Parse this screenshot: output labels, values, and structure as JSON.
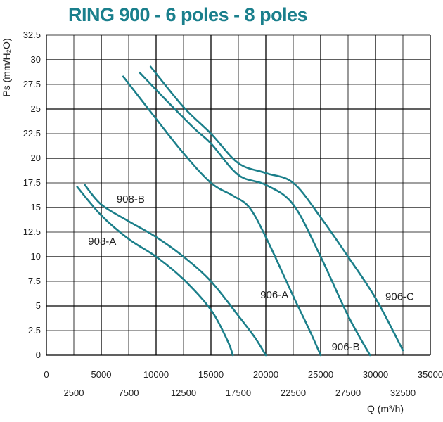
{
  "chart_data": {
    "type": "line",
    "title": "RING 900 - 6 poles -  8 poles",
    "xlabel": "Q (m³/h)",
    "ylabel": "Ps (mm/H₂O)",
    "xlim": [
      0,
      35000
    ],
    "ylim": [
      0,
      32.5
    ],
    "grid": true,
    "x_ticks_top": [
      "0",
      "5000",
      "10000",
      "15000",
      "20000",
      "25000",
      "30000",
      "35000"
    ],
    "x_ticks_bottom": [
      "2500",
      "7500",
      "12500",
      "17500",
      "22500",
      "27500",
      "32500"
    ],
    "y_ticks": [
      "0",
      "2.5",
      "5",
      "7.5",
      "10",
      "12.5",
      "15",
      "17.5",
      "20",
      "22.5",
      "25",
      "27.5",
      "30",
      "32.5"
    ],
    "series": [
      {
        "name": "908-A",
        "label_at": [
          3800,
          11.2
        ],
        "points": [
          [
            2800,
            17.1
          ],
          [
            5000,
            14.2
          ],
          [
            7500,
            11.8
          ],
          [
            10000,
            10.0
          ],
          [
            12500,
            7.7
          ],
          [
            15000,
            4.6
          ],
          [
            16500,
            1.5
          ],
          [
            17000,
            0
          ]
        ]
      },
      {
        "name": "908-B",
        "label_at": [
          6400,
          15.5
        ],
        "points": [
          [
            3500,
            17.3
          ],
          [
            5000,
            15.3
          ],
          [
            7500,
            13.6
          ],
          [
            10000,
            12.0
          ],
          [
            12500,
            10.0
          ],
          [
            15000,
            7.5
          ],
          [
            17500,
            4.0
          ],
          [
            19000,
            1.8
          ],
          [
            20000,
            0
          ]
        ]
      },
      {
        "name": "906-A",
        "label_at": [
          19500,
          5.8
        ],
        "points": [
          [
            7000,
            28.3
          ],
          [
            10000,
            24.0
          ],
          [
            12500,
            20.5
          ],
          [
            15000,
            17.5
          ],
          [
            17000,
            16.2
          ],
          [
            18500,
            15.0
          ],
          [
            20000,
            12.0
          ],
          [
            22500,
            6.0
          ],
          [
            24000,
            2.5
          ],
          [
            25000,
            0
          ]
        ]
      },
      {
        "name": "906-B",
        "label_at": [
          26000,
          0.5
        ],
        "points": [
          [
            8500,
            28.7
          ],
          [
            11000,
            25.8
          ],
          [
            13500,
            23.0
          ],
          [
            15000,
            21.5
          ],
          [
            17500,
            18.3
          ],
          [
            20000,
            17.3
          ],
          [
            22500,
            15.3
          ],
          [
            25000,
            10.0
          ],
          [
            27500,
            4.0
          ],
          [
            29500,
            0
          ]
        ]
      },
      {
        "name": "906-C",
        "label_at": [
          30900,
          5.6
        ],
        "points": [
          [
            9500,
            29.3
          ],
          [
            12500,
            25.2
          ],
          [
            15000,
            22.5
          ],
          [
            17500,
            19.5
          ],
          [
            20000,
            18.5
          ],
          [
            22500,
            17.5
          ],
          [
            25000,
            14.0
          ],
          [
            27500,
            10.0
          ],
          [
            30000,
            5.8
          ],
          [
            32500,
            0.5
          ]
        ]
      }
    ]
  }
}
